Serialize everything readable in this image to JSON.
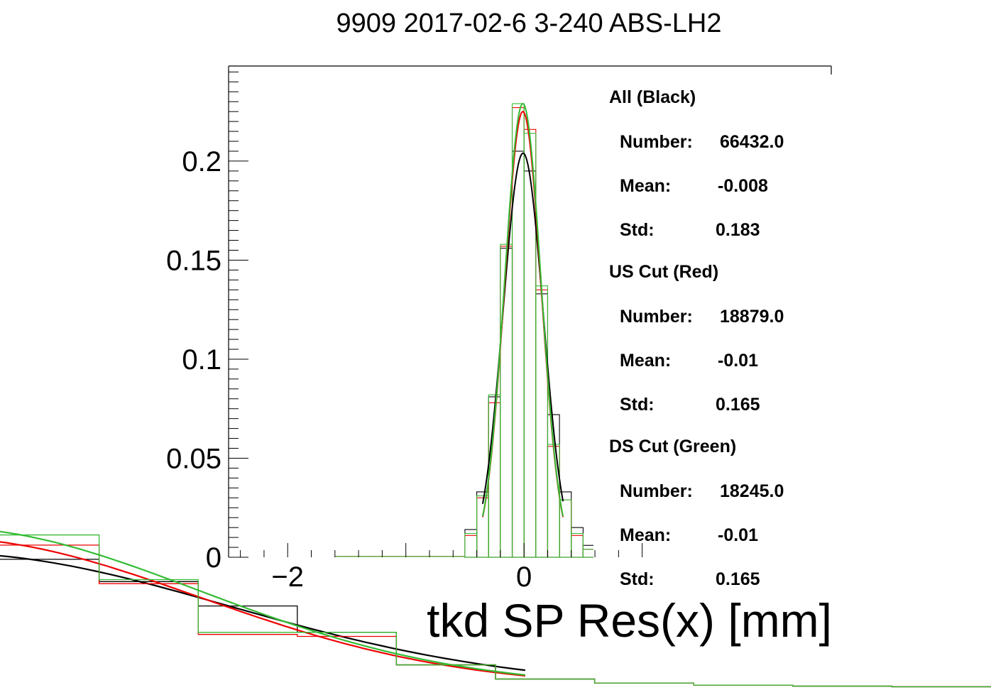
{
  "chart_data": {
    "type": "line",
    "title": "9909 2017-02-6 3-240 ABS-LH2",
    "xlabel": "tkd SP Res(x) [mm]",
    "ylabel": "",
    "xlim": [
      -2.5,
      2.6
    ],
    "ylim": [
      0,
      0.248
    ],
    "x_ticks": [
      {
        "value": -2,
        "label": "−2"
      },
      {
        "value": 0,
        "label": "0"
      }
    ],
    "y_ticks": [
      {
        "value": 0,
        "label": "0"
      },
      {
        "value": 0.05,
        "label": "0.05"
      },
      {
        "value": 0.1,
        "label": "0.1"
      },
      {
        "value": 0.15,
        "label": "0.15"
      },
      {
        "value": 0.2,
        "label": "0.2"
      }
    ],
    "grid": false,
    "bin_edges": [
      -0.5,
      -0.4,
      -0.3,
      -0.2,
      -0.1,
      0,
      0.1,
      0.2,
      0.3,
      0.4,
      0.5,
      0.6,
      0.7,
      0.8,
      0.9,
      1.0,
      1.1,
      1.2
    ],
    "series": [
      {
        "name": "All (Black)",
        "color": "#000000",
        "values": [
          0.014,
          0.033,
          0.081,
          0.156,
          0.205,
          0.195,
          0.133,
          0.072,
          0.033,
          0.015,
          0.006,
          0.002,
          0.0006,
          0.0001,
          0,
          0,
          0
        ],
        "fit": {
          "amplitude": 0.204,
          "mean": -0.008,
          "sigma": 0.17
        }
      },
      {
        "name": "US Cut (Red)",
        "color": "#ee0000",
        "values": [
          0.011,
          0.03,
          0.078,
          0.157,
          0.227,
          0.216,
          0.135,
          0.056,
          0.029,
          0.011,
          0.004,
          0.002,
          0.0004,
          0.0001,
          0,
          0,
          0
        ],
        "fit": {
          "amplitude": 0.225,
          "mean": -0.01,
          "sigma": 0.155
        }
      },
      {
        "name": "DS Cut (Green)",
        "color": "#33bb33",
        "values": [
          0.012,
          0.031,
          0.082,
          0.158,
          0.229,
          0.214,
          0.137,
          0.057,
          0.029,
          0.012,
          0.004,
          0.002,
          0.0004,
          0.0001,
          0,
          0,
          0
        ],
        "fit": {
          "amplitude": 0.229,
          "mean": -0.01,
          "sigma": 0.155
        }
      }
    ],
    "stats": [
      {
        "heading": "All (Black)",
        "number_label": "Number:",
        "number": "66432.0",
        "mean_label": "Mean:",
        "mean": "-0.008",
        "std_label": "Std:",
        "std": "0.183"
      },
      {
        "heading": "US Cut (Red)",
        "number_label": "Number:",
        "number": "18879.0",
        "mean_label": "Mean:",
        "mean": "-0.01",
        "std_label": "Std:",
        "std": "0.165"
      },
      {
        "heading": "DS Cut (Green)",
        "number_label": "Number:",
        "number": "18245.0",
        "mean_label": "Mean:",
        "mean": "-0.01",
        "std_label": "Std:",
        "std": "0.165"
      }
    ],
    "zoom_inset": {
      "bin_edges": [
        0.5,
        1.0,
        1.5,
        2.0,
        2.5,
        3.0,
        3.5,
        4.0,
        4.5,
        5.0,
        5.5
      ],
      "series": [
        {
          "color": "#000000",
          "values": [
            0.0063,
            0.0052,
            0.004,
            0.0027,
            0.0011,
            0.0004,
            0.0002,
            0.0001,
            5e-05,
            2e-05
          ]
        },
        {
          "color": "#ee0000",
          "values": [
            0.007,
            0.0051,
            0.0026,
            0.0025,
            0.0011,
            0.0004,
            0.0002,
            0.0001,
            5e-05,
            2e-05
          ]
        },
        {
          "color": "#33bb33",
          "values": [
            0.0075,
            0.0053,
            0.0027,
            0.0027,
            0.0011,
            0.0004,
            0.0002,
            0.0001,
            5e-05,
            2e-05
          ]
        }
      ]
    }
  }
}
